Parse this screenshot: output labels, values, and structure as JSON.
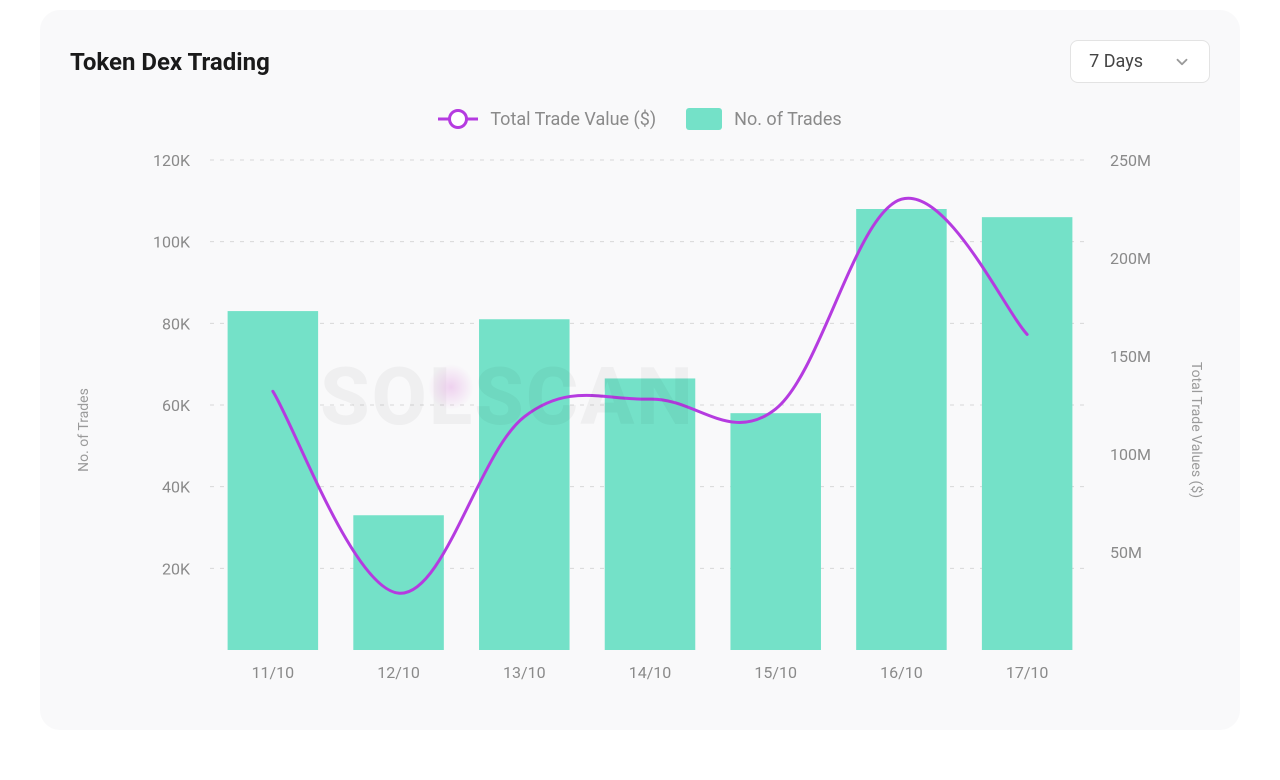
{
  "title": "Token Dex Trading",
  "dropdown": {
    "selected": "7 Days"
  },
  "legend": {
    "line_label": "Total Trade Value ($)",
    "bar_label": "No. of Trades"
  },
  "axis_titles": {
    "left": "No. of Trades",
    "right": "Total Trade Values ($)"
  },
  "watermark": "SOLSCAN",
  "chart": {
    "type": "combo-bar-line",
    "background_color": "#f9f9fa",
    "grid_color": "#d8d8d8",
    "categories": [
      "11/10",
      "12/10",
      "13/10",
      "14/10",
      "15/10",
      "16/10",
      "17/10"
    ],
    "bars": {
      "color": "#74e1c8",
      "values_no_of_trades": [
        83000,
        33000,
        81000,
        66500,
        58000,
        108000,
        106000
      ],
      "bar_width_ratio": 0.72
    },
    "left_axis": {
      "min": 0,
      "max": 120000,
      "step": 20000,
      "ticks": [
        "20K",
        "40K",
        "60K",
        "80K",
        "100K",
        "120K"
      ]
    },
    "line": {
      "color": "#b53be0",
      "stroke_width": 3,
      "values_total_trade_value_m": [
        132,
        29,
        119,
        128,
        123,
        230,
        161
      ]
    },
    "right_axis": {
      "min": 0,
      "max": 250,
      "step": 50,
      "ticks": [
        "50M",
        "100M",
        "150M",
        "200M",
        "250M"
      ]
    },
    "tick_fontsize": 16,
    "axis_title_fontsize": 14,
    "axis_title_color": "#9a9a9a",
    "tick_color": "#8a8a8a"
  }
}
